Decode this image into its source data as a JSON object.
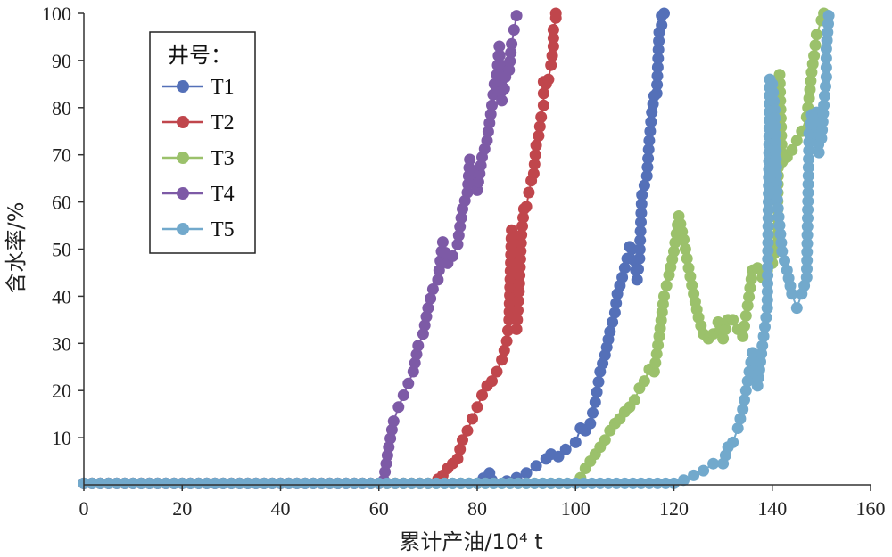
{
  "chart_data": {
    "type": "line",
    "xlabel": "累计产油/10⁴ t",
    "ylabel": "含水率/%",
    "xlim": [
      0,
      160
    ],
    "ylim": [
      0,
      100
    ],
    "xticks": [
      0,
      20,
      40,
      60,
      80,
      100,
      120,
      140,
      160
    ],
    "yticks": [
      10,
      20,
      30,
      40,
      50,
      60,
      70,
      80,
      90,
      100
    ],
    "grid": false,
    "legend": {
      "title": "井号：",
      "position": "top-left"
    },
    "series": [
      {
        "name": "T1",
        "color": "#5470b8",
        "points": [
          [
            0,
            0.3
          ],
          [
            20,
            0.3
          ],
          [
            40,
            0.3
          ],
          [
            60,
            0.3
          ],
          [
            80,
            0.3
          ],
          [
            82.5,
            2.5
          ],
          [
            83,
            1
          ],
          [
            86,
            0.8
          ],
          [
            88,
            1.5
          ],
          [
            90,
            2.5
          ],
          [
            92,
            4
          ],
          [
            94,
            5.5
          ],
          [
            95,
            6.5
          ],
          [
            96.5,
            6
          ],
          [
            98,
            7.5
          ],
          [
            100,
            9
          ],
          [
            101,
            12
          ],
          [
            102,
            11.5
          ],
          [
            103,
            13
          ],
          [
            104,
            17.5
          ],
          [
            105,
            24
          ],
          [
            106,
            27.5
          ],
          [
            107,
            32.5
          ],
          [
            108,
            36.5
          ],
          [
            108.5,
            40.5
          ],
          [
            109.5,
            44
          ],
          [
            110,
            46
          ],
          [
            110.5,
            48
          ],
          [
            111,
            50.5
          ],
          [
            111.5,
            50
          ],
          [
            112,
            47.5
          ],
          [
            112.5,
            43.5
          ],
          [
            113,
            48
          ],
          [
            113.5,
            61.5
          ],
          [
            114,
            63.5
          ],
          [
            114.5,
            65.5
          ],
          [
            115,
            73
          ],
          [
            115.5,
            79
          ],
          [
            116,
            82.5
          ],
          [
            116.5,
            83
          ],
          [
            117,
            96
          ],
          [
            117.5,
            97.5
          ],
          [
            117.5,
            99.5
          ],
          [
            118,
            100
          ]
        ]
      },
      {
        "name": "T2",
        "color": "#c0464c",
        "points": [
          [
            0,
            0.3
          ],
          [
            20,
            0.3
          ],
          [
            40,
            0.3
          ],
          [
            60,
            0.3
          ],
          [
            70,
            0.3
          ],
          [
            72,
            1.2
          ],
          [
            73,
            2
          ],
          [
            74,
            3.5
          ],
          [
            75,
            4.5
          ],
          [
            76,
            5.5
          ],
          [
            77,
            9.5
          ],
          [
            78,
            11.5
          ],
          [
            79,
            14
          ],
          [
            80,
            16.5
          ],
          [
            81,
            19
          ],
          [
            82,
            21
          ],
          [
            83,
            22
          ],
          [
            84,
            24
          ],
          [
            85,
            26.5
          ],
          [
            86,
            30.5
          ],
          [
            86.5,
            35
          ],
          [
            87,
            54
          ],
          [
            87.5,
            36
          ],
          [
            88,
            33
          ],
          [
            88.5,
            41
          ],
          [
            89,
            53
          ],
          [
            89.5,
            58.5
          ],
          [
            90,
            59
          ],
          [
            90.5,
            62
          ],
          [
            91,
            64.5
          ],
          [
            91.5,
            66
          ],
          [
            92,
            72
          ],
          [
            92.5,
            74
          ],
          [
            93,
            78
          ],
          [
            93.5,
            80.5
          ],
          [
            93.5,
            85.5
          ],
          [
            94,
            85
          ],
          [
            94.5,
            86
          ],
          [
            95,
            89
          ],
          [
            95.5,
            93
          ],
          [
            95.5,
            96.5
          ],
          [
            96,
            99
          ],
          [
            96,
            100
          ]
        ]
      },
      {
        "name": "T3",
        "color": "#9bc16b",
        "points": [
          [
            0,
            0.3
          ],
          [
            20,
            0.3
          ],
          [
            40,
            0.3
          ],
          [
            60,
            0.3
          ],
          [
            80,
            0.3
          ],
          [
            100,
            0.3
          ],
          [
            101,
            1.5
          ],
          [
            102,
            3.5
          ],
          [
            103,
            5
          ],
          [
            104,
            6.5
          ],
          [
            105,
            8
          ],
          [
            106,
            9.5
          ],
          [
            107,
            11.5
          ],
          [
            108,
            13
          ],
          [
            109,
            14
          ],
          [
            110,
            15.5
          ],
          [
            111,
            16.5
          ],
          [
            112,
            18
          ],
          [
            113,
            20.5
          ],
          [
            114,
            22
          ],
          [
            115,
            24.5
          ],
          [
            116,
            24
          ],
          [
            117,
            31.5
          ],
          [
            118,
            40
          ],
          [
            119,
            44.5
          ],
          [
            120,
            49.5
          ],
          [
            121,
            57
          ],
          [
            122,
            52
          ],
          [
            123,
            46
          ],
          [
            124,
            40.5
          ],
          [
            125,
            35.5
          ],
          [
            126,
            32
          ],
          [
            127,
            31
          ],
          [
            128,
            32
          ],
          [
            129,
            34.5
          ],
          [
            130,
            31
          ],
          [
            131,
            35
          ],
          [
            132,
            35
          ],
          [
            133,
            33
          ],
          [
            134,
            31.5
          ],
          [
            135,
            38
          ],
          [
            136,
            45.5
          ],
          [
            137,
            46
          ],
          [
            138,
            44
          ],
          [
            139,
            45.5
          ],
          [
            140,
            47
          ],
          [
            141,
            53
          ],
          [
            141.5,
            87
          ],
          [
            142,
            68.5
          ],
          [
            143,
            69.5
          ],
          [
            144,
            71
          ],
          [
            145,
            73
          ],
          [
            146,
            75
          ],
          [
            147,
            78
          ],
          [
            147.5,
            82
          ],
          [
            148,
            87.5
          ],
          [
            148.5,
            91
          ],
          [
            149,
            95.5
          ],
          [
            150,
            98.5
          ],
          [
            150.5,
            100
          ]
        ]
      },
      {
        "name": "T4",
        "color": "#7d5aa6",
        "points": [
          [
            0,
            0.3
          ],
          [
            20,
            0.3
          ],
          [
            40,
            0.3
          ],
          [
            60,
            0.3
          ],
          [
            61,
            1
          ],
          [
            62,
            8
          ],
          [
            63,
            13.5
          ],
          [
            64,
            16.5
          ],
          [
            65,
            19
          ],
          [
            66,
            21.5
          ],
          [
            67,
            24
          ],
          [
            68,
            29.5
          ],
          [
            69,
            32
          ],
          [
            70,
            37.5
          ],
          [
            71,
            41.5
          ],
          [
            72,
            43.5
          ],
          [
            73,
            51.5
          ],
          [
            74,
            47
          ],
          [
            75,
            48.5
          ],
          [
            76,
            51
          ],
          [
            77,
            58.5
          ],
          [
            78,
            62
          ],
          [
            78.5,
            69
          ],
          [
            79,
            64.5
          ],
          [
            80,
            62.5
          ],
          [
            81,
            69.5
          ],
          [
            82,
            73
          ],
          [
            83,
            80.5
          ],
          [
            83.5,
            85
          ],
          [
            84,
            87
          ],
          [
            84.5,
            93
          ],
          [
            85,
            81.5
          ],
          [
            85.5,
            84
          ],
          [
            86,
            89
          ],
          [
            86.5,
            88
          ],
          [
            87,
            93.5
          ],
          [
            87.5,
            96.5
          ],
          [
            88,
            99.5
          ]
        ]
      },
      {
        "name": "T5",
        "color": "#72a9cc",
        "points": [
          [
            0,
            0.3
          ],
          [
            20,
            0.3
          ],
          [
            40,
            0.3
          ],
          [
            60,
            0.3
          ],
          [
            80,
            0.3
          ],
          [
            100,
            0.3
          ],
          [
            120,
            0.3
          ],
          [
            122,
            1
          ],
          [
            124,
            2
          ],
          [
            126,
            3
          ],
          [
            128,
            4.5
          ],
          [
            130,
            4.5
          ],
          [
            131,
            8
          ],
          [
            132,
            9
          ],
          [
            133,
            12
          ],
          [
            134,
            16
          ],
          [
            135,
            22
          ],
          [
            136,
            28
          ],
          [
            137,
            21
          ],
          [
            138,
            29.5
          ],
          [
            139,
            37.5
          ],
          [
            139.5,
            86
          ],
          [
            140,
            85
          ],
          [
            140.5,
            79.5
          ],
          [
            141,
            60.5
          ],
          [
            142,
            49.5
          ],
          [
            143,
            45.5
          ],
          [
            144,
            40.5
          ],
          [
            145,
            37.5
          ],
          [
            146,
            40.5
          ],
          [
            147,
            44
          ],
          [
            147.5,
            74.5
          ],
          [
            148,
            78.5
          ],
          [
            149,
            79
          ],
          [
            149.5,
            70.5
          ],
          [
            150,
            73.5
          ],
          [
            150.5,
            80.5
          ],
          [
            151,
            86.5
          ],
          [
            151,
            92.5
          ],
          [
            151.5,
            99.5
          ]
        ]
      }
    ]
  }
}
